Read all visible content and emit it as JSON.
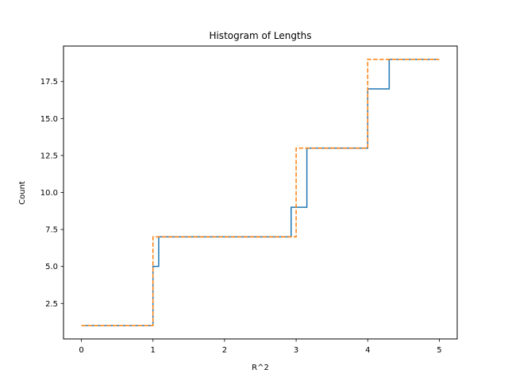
{
  "chart_data": {
    "type": "line",
    "title": "Histogram of Lengths",
    "xlabel": "R^2",
    "ylabel": "Count",
    "xlim": [
      -0.25,
      5.25
    ],
    "ylim": [
      0.1,
      19.9
    ],
    "xticks": [
      0,
      1,
      2,
      3,
      4,
      5
    ],
    "xtick_labels": [
      "0",
      "1",
      "2",
      "3",
      "4",
      "5"
    ],
    "yticks": [
      2.5,
      5.0,
      7.5,
      10.0,
      12.5,
      15.0,
      17.5
    ],
    "ytick_labels": [
      "2.5",
      "5.0",
      "7.5",
      "10.0",
      "12.5",
      "15.0",
      "17.5"
    ],
    "grid": false,
    "legend": null,
    "series": [
      {
        "color": "#1f77b4",
        "linestyle": "solid",
        "drawstyle": "steps-post",
        "x": [
          0,
          0.99,
          1.0,
          1.08,
          2.93,
          3.15,
          4.0,
          4.3,
          5.0
        ],
        "y": [
          1,
          1,
          5,
          7,
          9,
          13,
          17,
          19,
          19
        ]
      },
      {
        "color": "#ff7f0e",
        "linestyle": "dashed",
        "drawstyle": "steps-post",
        "x": [
          0,
          1,
          3,
          4,
          5
        ],
        "y": [
          1,
          7,
          13,
          19,
          19
        ]
      }
    ]
  }
}
